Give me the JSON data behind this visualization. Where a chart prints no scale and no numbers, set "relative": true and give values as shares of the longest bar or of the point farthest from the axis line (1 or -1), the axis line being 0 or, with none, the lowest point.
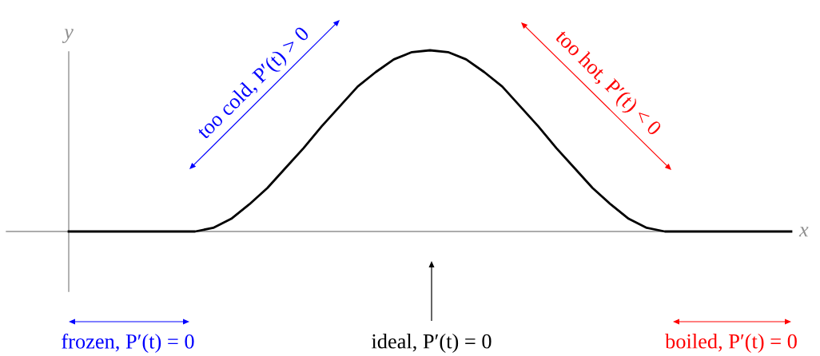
{
  "chart_data": {
    "type": "line",
    "relative": true,
    "xlabel": "x",
    "ylabel": "y",
    "categories": [
      null,
      null,
      null,
      null,
      null,
      null,
      null,
      null,
      null,
      null,
      null,
      null,
      null,
      null,
      null,
      null,
      null,
      null,
      null,
      null,
      null,
      null,
      null,
      null,
      null,
      null,
      null,
      null,
      null,
      null,
      null,
      null,
      null,
      null,
      null,
      null,
      null,
      null,
      null,
      null,
      null
    ],
    "series": [
      {
        "color": "#000000",
        "values": [
          0,
          0,
          0,
          0,
          0,
          0,
          0,
          0,
          0.02,
          0.07,
          0.15,
          0.24,
          0.35,
          0.46,
          0.58,
          0.69,
          0.8,
          0.88,
          0.95,
          0.99,
          1,
          0.99,
          0.95,
          0.88,
          0.8,
          0.69,
          0.58,
          0.46,
          0.35,
          0.24,
          0.15,
          0.07,
          0.02,
          0,
          0,
          0,
          0,
          0,
          0,
          0,
          0
        ]
      }
    ],
    "annotations": [
      "too cold, P′(t) > 0",
      "too hot, P′(t) < 0",
      "frozen, P′(t) = 0",
      "ideal, P′(t) = 0",
      "boiled, P′(t) = 0"
    ]
  }
}
